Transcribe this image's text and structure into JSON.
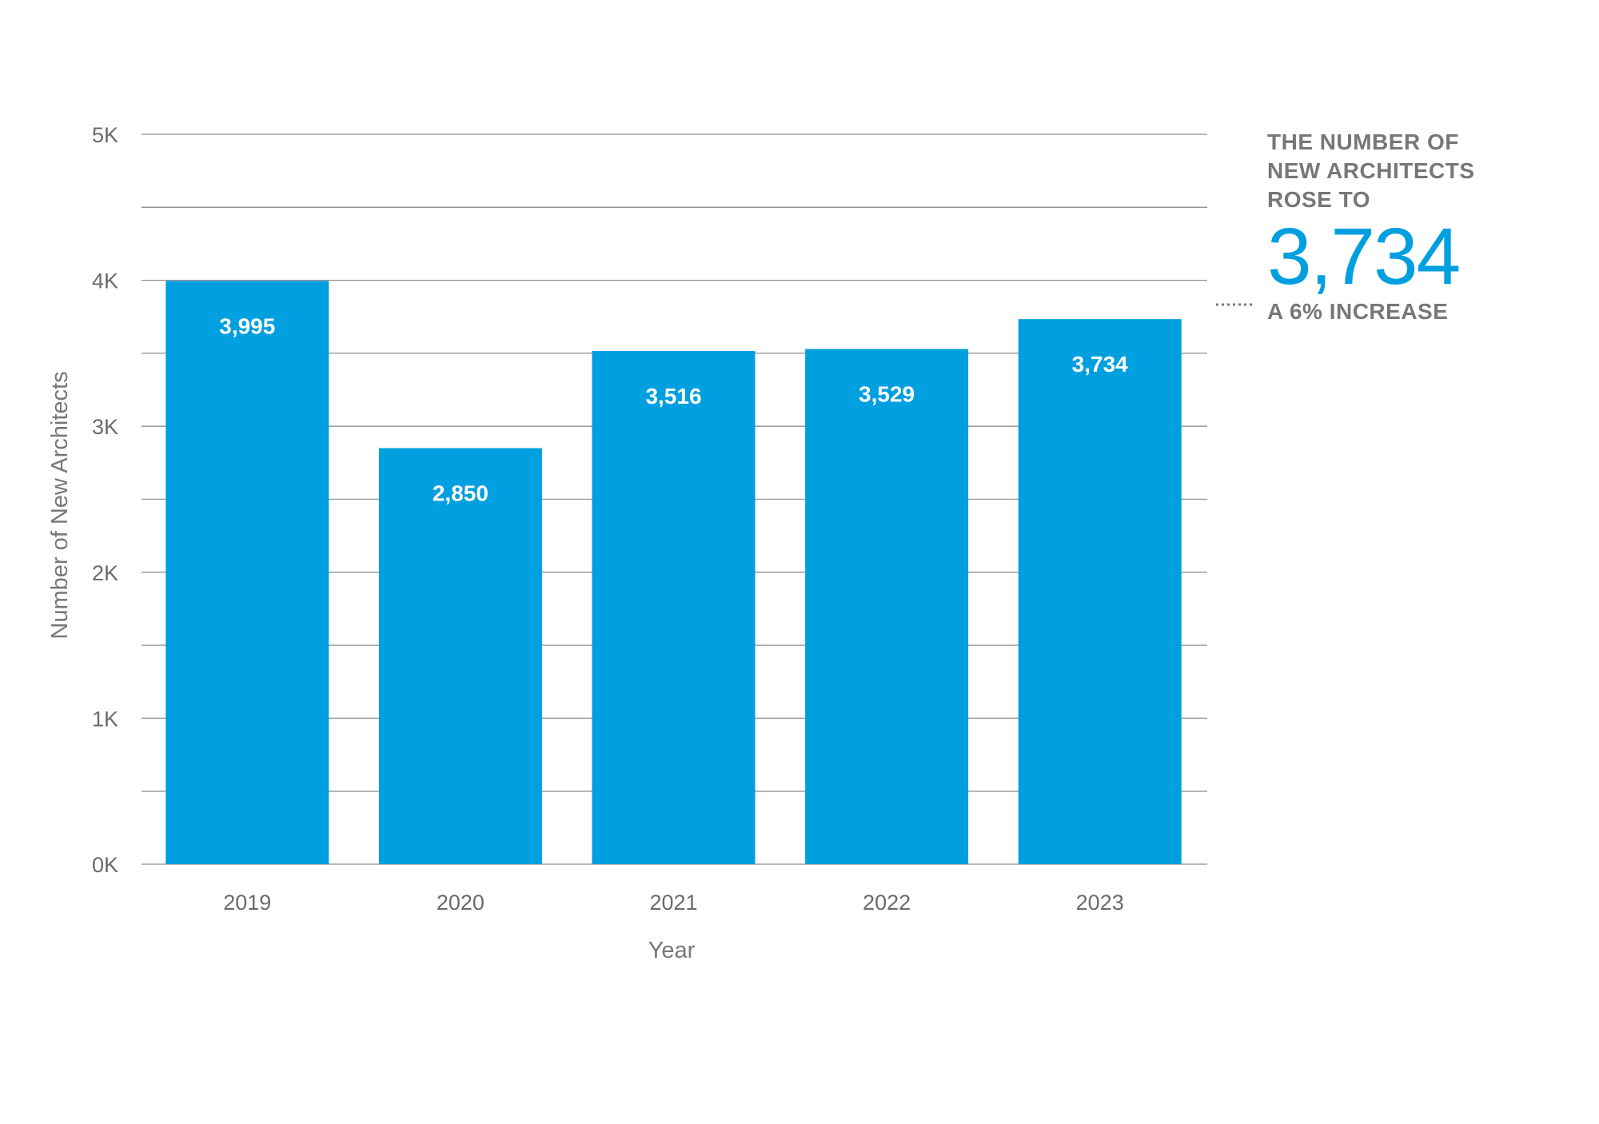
{
  "chart_data": {
    "type": "bar",
    "categories": [
      "2019",
      "2020",
      "2021",
      "2022",
      "2023"
    ],
    "values": [
      3995,
      2850,
      3516,
      3529,
      3734
    ],
    "value_labels": [
      "3,995",
      "2,850",
      "3,516",
      "3,529",
      "3,734"
    ],
    "ylim": [
      0,
      5000
    ],
    "yticks": [
      0,
      1000,
      2000,
      3000,
      4000,
      5000
    ],
    "ytick_labels": [
      "0K",
      "1K",
      "2K",
      "3K",
      "4K",
      "5K"
    ],
    "minor_gridlines": [
      500,
      1500,
      2500,
      3500,
      4500
    ],
    "xlabel": "Year",
    "ylabel": "Number of New Architects",
    "bar_color": "#009fdf",
    "grid": true
  },
  "callout": {
    "line1": "THE NUMBER OF",
    "line2": "NEW ARCHITECTS",
    "line3": "ROSE TO",
    "value": "3,734",
    "subtext": "A 6% INCREASE",
    "value_color": "#009fdf"
  }
}
